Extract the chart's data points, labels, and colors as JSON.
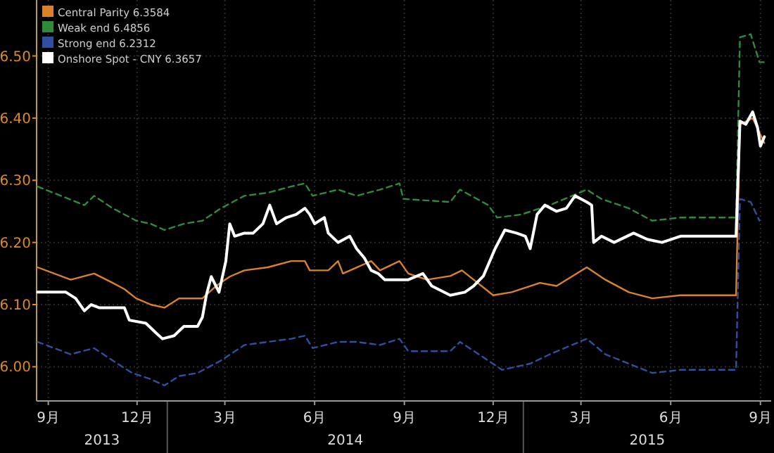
{
  "chart_data": {
    "type": "line",
    "xlim": [
      "2013-08-20",
      "2015-09-12"
    ],
    "xticks": [
      {
        "value": "2013-09-01",
        "label": "9月"
      },
      {
        "value": "2013-12-01",
        "label": "12月"
      },
      {
        "value": "2014-03-01",
        "label": "3月"
      },
      {
        "value": "2014-06-01",
        "label": "6月"
      },
      {
        "value": "2014-09-01",
        "label": "9月"
      },
      {
        "value": "2014-12-01",
        "label": "12月"
      },
      {
        "value": "2015-03-01",
        "label": "3月"
      },
      {
        "value": "2015-06-01",
        "label": "6月"
      },
      {
        "value": "2015-09-01",
        "label": "9月"
      }
    ],
    "ylim": [
      5.945,
      6.59
    ],
    "yticks": [
      {
        "value": 6.0,
        "label": "6.00"
      },
      {
        "value": 6.1,
        "label": "6.10"
      },
      {
        "value": 6.2,
        "label": "6.20"
      },
      {
        "value": 6.3,
        "label": "6.30"
      },
      {
        "value": 6.4,
        "label": "6.40"
      },
      {
        "value": 6.5,
        "label": "6.50"
      }
    ],
    "annotations": [
      "2013",
      "2014",
      "2015"
    ],
    "grid": true,
    "legend": "top left",
    "marker": "none",
    "series": [
      {
        "name": "Central Parity 6.3584",
        "color": "#d9822b",
        "line_style": "solid",
        "x": [
          "2013-08-21",
          "2013-09-24",
          "2013-10-18",
          "2013-11-06",
          "2013-11-18",
          "2013-11-30",
          "2013-12-15",
          "2013-12-29",
          "2014-01-13",
          "2014-02-06",
          "2014-02-20",
          "2014-03-06",
          "2014-03-21",
          "2014-04-14",
          "2014-05-08",
          "2014-05-22",
          "2014-05-27",
          "2014-06-15",
          "2014-06-25",
          "2014-06-30",
          "2014-07-29",
          "2014-08-07",
          "2014-08-27",
          "2014-09-05",
          "2014-09-24",
          "2014-10-18",
          "2014-10-30",
          "2014-11-11",
          "2014-12-01",
          "2014-12-20",
          "2015-01-18",
          "2015-02-04",
          "2015-03-07",
          "2015-03-26",
          "2015-04-19",
          "2015-05-13",
          "2015-06-11",
          "2015-07-10",
          "2015-08-07",
          "2015-08-11",
          "2015-08-24",
          "2015-09-05"
        ],
        "values": [
          6.16,
          6.14,
          6.15,
          6.135,
          6.125,
          6.11,
          6.1,
          6.095,
          6.11,
          6.11,
          6.13,
          6.145,
          6.155,
          6.16,
          6.17,
          6.17,
          6.155,
          6.155,
          6.17,
          6.15,
          6.17,
          6.155,
          6.17,
          6.15,
          6.14,
          6.146,
          6.155,
          6.14,
          6.115,
          6.12,
          6.135,
          6.13,
          6.16,
          6.14,
          6.12,
          6.11,
          6.115,
          6.115,
          6.115,
          6.39,
          6.4,
          6.36
        ]
      },
      {
        "name": "Weak end 6.4856",
        "color": "#2e8b3a",
        "line_style": "dashed",
        "x": [
          "2013-08-21",
          "2013-09-14",
          "2013-10-08",
          "2013-10-18",
          "2013-11-06",
          "2013-11-30",
          "2013-12-15",
          "2013-12-29",
          "2014-01-18",
          "2014-02-06",
          "2014-02-25",
          "2014-03-21",
          "2014-04-14",
          "2014-05-08",
          "2014-05-22",
          "2014-05-30",
          "2014-06-25",
          "2014-07-14",
          "2014-08-07",
          "2014-08-27",
          "2014-08-31",
          "2014-10-18",
          "2014-10-28",
          "2014-11-26",
          "2014-12-05",
          "2014-12-30",
          "2015-01-28",
          "2015-03-07",
          "2015-03-22",
          "2015-04-19",
          "2015-05-13",
          "2015-06-11",
          "2015-07-10",
          "2015-08-07",
          "2015-08-11",
          "2015-08-22",
          "2015-08-31",
          "2015-09-05"
        ],
        "values": [
          6.29,
          6.275,
          6.26,
          6.275,
          6.255,
          6.235,
          6.23,
          6.22,
          6.23,
          6.235,
          6.255,
          6.275,
          6.28,
          6.29,
          6.295,
          6.275,
          6.285,
          6.275,
          6.285,
          6.295,
          6.27,
          6.265,
          6.285,
          6.26,
          6.24,
          6.245,
          6.26,
          6.285,
          6.27,
          6.255,
          6.235,
          6.24,
          6.24,
          6.24,
          6.53,
          6.535,
          6.49,
          6.49
        ]
      },
      {
        "name": "Strong end 6.2312",
        "color": "#2f4f9f",
        "line_style": "dashed",
        "x": [
          "2013-08-21",
          "2013-09-24",
          "2013-10-18",
          "2013-11-06",
          "2013-11-26",
          "2013-12-15",
          "2013-12-29",
          "2014-01-13",
          "2014-02-01",
          "2014-02-25",
          "2014-03-21",
          "2014-04-14",
          "2014-05-08",
          "2014-05-22",
          "2014-05-30",
          "2014-06-25",
          "2014-07-14",
          "2014-08-07",
          "2014-08-27",
          "2014-09-05",
          "2014-10-18",
          "2014-10-28",
          "2014-11-26",
          "2014-12-10",
          "2015-01-08",
          "2015-01-28",
          "2015-03-07",
          "2015-03-26",
          "2015-04-19",
          "2015-05-13",
          "2015-06-11",
          "2015-07-10",
          "2015-08-07",
          "2015-08-11",
          "2015-08-22",
          "2015-08-31"
        ],
        "values": [
          6.04,
          6.02,
          6.03,
          6.01,
          5.99,
          5.98,
          5.97,
          5.985,
          5.99,
          6.01,
          6.035,
          6.04,
          6.045,
          6.05,
          6.03,
          6.04,
          6.04,
          6.035,
          6.045,
          6.025,
          6.025,
          6.04,
          6.01,
          5.995,
          6.005,
          6.02,
          6.045,
          6.02,
          6.005,
          5.99,
          5.995,
          5.995,
          5.995,
          6.27,
          6.265,
          6.235
        ]
      },
      {
        "name": "Onshore Spot - CNY 6.3657",
        "color": "#ffffff",
        "line_style": "solid",
        "x": [
          "2013-08-21",
          "2013-09-19",
          "2013-09-29",
          "2013-10-08",
          "2013-10-15",
          "2013-10-23",
          "2013-11-18",
          "2013-11-23",
          "2013-12-10",
          "2013-12-20",
          "2013-12-27",
          "2014-01-08",
          "2014-01-18",
          "2014-02-01",
          "2014-02-06",
          "2014-02-10",
          "2014-02-15",
          "2014-02-23",
          "2014-03-02",
          "2014-03-06",
          "2014-03-11",
          "2014-03-21",
          "2014-03-30",
          "2014-04-09",
          "2014-04-16",
          "2014-04-23",
          "2014-05-03",
          "2014-05-13",
          "2014-05-22",
          "2014-05-27",
          "2014-06-01",
          "2014-06-11",
          "2014-06-15",
          "2014-06-25",
          "2014-07-07",
          "2014-07-14",
          "2014-07-22",
          "2014-07-29",
          "2014-08-05",
          "2014-08-12",
          "2014-08-22",
          "2014-09-05",
          "2014-09-20",
          "2014-09-29",
          "2014-10-18",
          "2014-11-02",
          "2014-11-11",
          "2014-11-21",
          "2014-12-03",
          "2014-12-13",
          "2014-12-25",
          "2015-01-03",
          "2015-01-08",
          "2015-01-15",
          "2015-01-23",
          "2015-02-04",
          "2015-02-14",
          "2015-02-23",
          "2015-03-07",
          "2015-03-12",
          "2015-03-14",
          "2015-03-22",
          "2015-04-04",
          "2015-04-24",
          "2015-05-08",
          "2015-05-23",
          "2015-06-11",
          "2015-07-10",
          "2015-08-07",
          "2015-08-11",
          "2015-08-17",
          "2015-08-24",
          "2015-08-29",
          "2015-09-01",
          "2015-09-05"
        ],
        "values": [
          6.12,
          6.12,
          6.11,
          6.09,
          6.1,
          6.095,
          6.095,
          6.075,
          6.07,
          6.055,
          6.045,
          6.05,
          6.065,
          6.065,
          6.08,
          6.115,
          6.145,
          6.12,
          6.17,
          6.23,
          6.21,
          6.215,
          6.215,
          6.23,
          6.26,
          6.23,
          6.24,
          6.245,
          6.255,
          6.245,
          6.23,
          6.24,
          6.215,
          6.2,
          6.21,
          6.19,
          6.175,
          6.155,
          6.15,
          6.14,
          6.14,
          6.14,
          6.15,
          6.13,
          6.115,
          6.12,
          6.13,
          6.146,
          6.19,
          6.22,
          6.215,
          6.21,
          6.19,
          6.245,
          6.26,
          6.25,
          6.255,
          6.275,
          6.265,
          6.26,
          6.2,
          6.21,
          6.2,
          6.215,
          6.205,
          6.2,
          6.21,
          6.21,
          6.21,
          6.395,
          6.39,
          6.41,
          6.385,
          6.355,
          6.37
        ]
      }
    ]
  }
}
